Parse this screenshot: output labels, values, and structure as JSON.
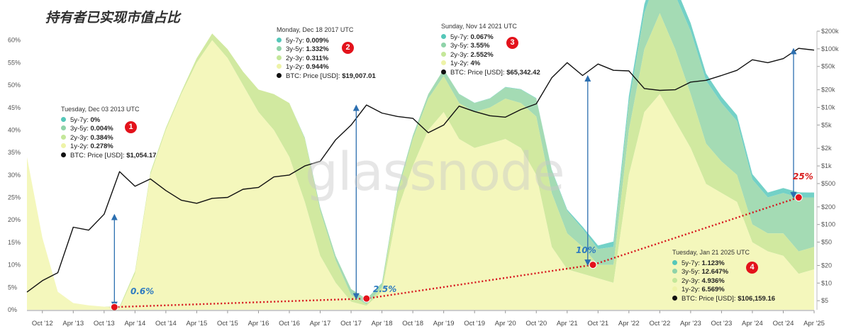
{
  "title": "持有者已实现市值占比",
  "watermark": "glassnode",
  "chart_data": {
    "type": "area",
    "title": "持有者已实现市值占比",
    "x_ticks": [
      "Oct '12",
      "Apr '13",
      "Oct '13",
      "Apr '14",
      "Oct '14",
      "Apr '15",
      "Oct '15",
      "Apr '16",
      "Oct '16",
      "Apr '17",
      "Oct '17",
      "Apr '18",
      "Oct '18",
      "Apr '19",
      "Oct '19",
      "Apr '20",
      "Oct '20",
      "Apr '21",
      "Oct '21",
      "Apr '22",
      "Oct '22",
      "Apr '23",
      "Oct '23",
      "Apr '24",
      "Oct '24",
      "Apr '25"
    ],
    "y_left_ticks": [
      "0%",
      "5%",
      "10%",
      "15%",
      "20%",
      "25%",
      "30%",
      "35%",
      "40%",
      "45%",
      "50%",
      "55%",
      "60%"
    ],
    "y_left_range": [
      0,
      62
    ],
    "y_right_ticks": [
      "$5",
      "$10",
      "$20",
      "$50",
      "$100",
      "$200",
      "$500",
      "$1k",
      "$2k",
      "$5k",
      "$10k",
      "$20k",
      "$50k",
      "$100k",
      "$200k"
    ],
    "y_right_scale": "log",
    "x": [
      "2012-07",
      "2012-10",
      "2013-01",
      "2013-04",
      "2013-07",
      "2013-10",
      "2014-01",
      "2014-04",
      "2014-07",
      "2014-10",
      "2015-01",
      "2015-04",
      "2015-07",
      "2015-10",
      "2016-01",
      "2016-04",
      "2016-07",
      "2016-10",
      "2017-01",
      "2017-04",
      "2017-07",
      "2017-10",
      "2018-01",
      "2018-04",
      "2018-07",
      "2018-10",
      "2019-01",
      "2019-04",
      "2019-07",
      "2019-10",
      "2020-01",
      "2020-04",
      "2020-07",
      "2020-10",
      "2021-01",
      "2021-04",
      "2021-07",
      "2021-10",
      "2022-01",
      "2022-04",
      "2022-07",
      "2022-10",
      "2023-01",
      "2023-04",
      "2023-07",
      "2023-10",
      "2024-01",
      "2024-04",
      "2024-07",
      "2024-10",
      "2025-01",
      "2025-04"
    ],
    "series": [
      {
        "name": "1y-2y",
        "color": "#f3f7b8",
        "values": [
          34,
          16,
          4,
          1.5,
          1,
          0.7,
          0.3,
          8,
          30,
          40,
          48,
          55,
          60,
          56,
          50,
          44,
          40,
          34,
          24,
          12,
          6,
          1.8,
          0.9,
          4,
          22,
          32,
          40,
          44,
          38,
          36,
          37,
          38,
          36,
          30,
          14,
          9,
          8,
          7,
          6,
          30,
          44,
          48,
          42,
          36,
          28,
          26,
          24,
          15,
          13,
          12,
          8,
          9
        ]
      },
      {
        "name": "2y-3y",
        "color": "#cfe89b",
        "values": [
          0,
          0,
          0,
          0,
          0,
          0,
          0.4,
          0.6,
          0.6,
          0.5,
          0.5,
          1,
          1.5,
          2,
          3,
          5,
          8,
          12,
          14,
          10,
          5,
          1.5,
          0.3,
          1,
          4,
          6,
          7,
          8,
          8,
          8,
          8,
          9,
          10,
          13,
          12,
          8,
          6,
          3,
          4,
          10,
          14,
          18,
          16,
          12,
          9,
          7,
          6,
          4,
          4,
          5,
          5,
          5
        ]
      },
      {
        "name": "3y-5y",
        "color": "#9fd9b0",
        "values": [
          0,
          0,
          0,
          0,
          0,
          0,
          0,
          0,
          0,
          0,
          0,
          0,
          0,
          0,
          0,
          0,
          0,
          0,
          0.3,
          0.8,
          1,
          1.3,
          1.2,
          1,
          0.8,
          0.8,
          1,
          1.5,
          2,
          2,
          2,
          2.5,
          3,
          4,
          5,
          5,
          4,
          3.5,
          4,
          6,
          8,
          10,
          12,
          14,
          14,
          13,
          12,
          10,
          8,
          9,
          12,
          11
        ]
      },
      {
        "name": "5y-7y",
        "color": "#6ccfc4",
        "values": [
          0,
          0,
          0,
          0,
          0,
          0,
          0,
          0,
          0,
          0,
          0,
          0,
          0,
          0,
          0,
          0,
          0,
          0,
          0,
          0,
          0,
          0,
          0,
          0,
          0,
          0,
          0,
          0,
          0.05,
          0.07,
          0.08,
          0.1,
          0.1,
          0.1,
          0.2,
          0.3,
          0.5,
          0.8,
          1.2,
          1.6,
          2,
          2.2,
          2.1,
          1.8,
          1.6,
          1.4,
          1.3,
          1.2,
          1.1,
          1.1,
          1.12,
          1.1
        ]
      },
      {
        "name": "BTC: Price [USD]",
        "color": "#111111",
        "values": [
          7,
          11,
          15,
          90,
          80,
          150,
          800,
          450,
          600,
          380,
          260,
          230,
          280,
          290,
          400,
          430,
          650,
          700,
          1000,
          1200,
          2800,
          5000,
          11000,
          8000,
          7000,
          6500,
          3700,
          5000,
          10500,
          8500,
          7200,
          6800,
          9200,
          11500,
          32000,
          58000,
          35000,
          55000,
          43000,
          42000,
          21000,
          19500,
          20000,
          27000,
          29000,
          35000,
          43000,
          65000,
          58000,
          68000,
          102000,
          95000
        ]
      }
    ],
    "annotations": [
      {
        "date": "Tuesday, Dec 03 2013 UTC",
        "badge": "1",
        "pct": "0.6%",
        "rows": [
          {
            "label": "5y-7y: ",
            "value": "0%"
          },
          {
            "label": "3y-5y: ",
            "value": "0.004%"
          },
          {
            "label": "2y-3y: ",
            "value": "0.384%"
          },
          {
            "label": "1y-2y: ",
            "value": "0.278%"
          },
          {
            "label": "BTC: Price [USD]: ",
            "value": "$1,054.17"
          }
        ]
      },
      {
        "date": "Monday, Dec 18 2017 UTC",
        "badge": "2",
        "pct": "2.5%",
        "rows": [
          {
            "label": "5y-7y: ",
            "value": "0.009%"
          },
          {
            "label": "3y-5y: ",
            "value": "1.332%"
          },
          {
            "label": "2y-3y: ",
            "value": "0.311%"
          },
          {
            "label": "1y-2y: ",
            "value": "0.944%"
          },
          {
            "label": "BTC: Price [USD]: ",
            "value": "$19,007.01"
          }
        ]
      },
      {
        "date": "Sunday, Nov 14 2021 UTC",
        "badge": "3",
        "pct": "10%",
        "rows": [
          {
            "label": "5y-7y: ",
            "value": "0.067%"
          },
          {
            "label": "3y-5y: ",
            "value": "3.55%"
          },
          {
            "label": "2y-3y: ",
            "value": "2.552%"
          },
          {
            "label": "1y-2y: ",
            "value": "4%"
          },
          {
            "label": "BTC: Price [USD]: ",
            "value": "$65,342.42"
          }
        ]
      },
      {
        "date": "Tuesday, Jan 21 2025 UTC",
        "badge": "4",
        "pct": "25%",
        "rows": [
          {
            "label": "5y-7y: ",
            "value": "1.123%"
          },
          {
            "label": "3y-5y: ",
            "value": "12.647%"
          },
          {
            "label": "2y-3y: ",
            "value": "4.936%"
          },
          {
            "label": "1y-2y: ",
            "value": "6.569%"
          },
          {
            "label": "BTC: Price [USD]: ",
            "value": "$106,159.16"
          }
        ]
      }
    ],
    "lows": [
      {
        "date": "2013-12",
        "value": 0.6
      },
      {
        "date": "2018-01",
        "value": 2.5
      },
      {
        "date": "2021-09",
        "value": 10
      },
      {
        "date": "2025-01",
        "value": 25
      }
    ],
    "dot_colors": [
      "#55c7b9",
      "#8fd3a9",
      "#c4e79a",
      "#eef3a8",
      "#111111"
    ],
    "grid": false,
    "legend": "none"
  }
}
